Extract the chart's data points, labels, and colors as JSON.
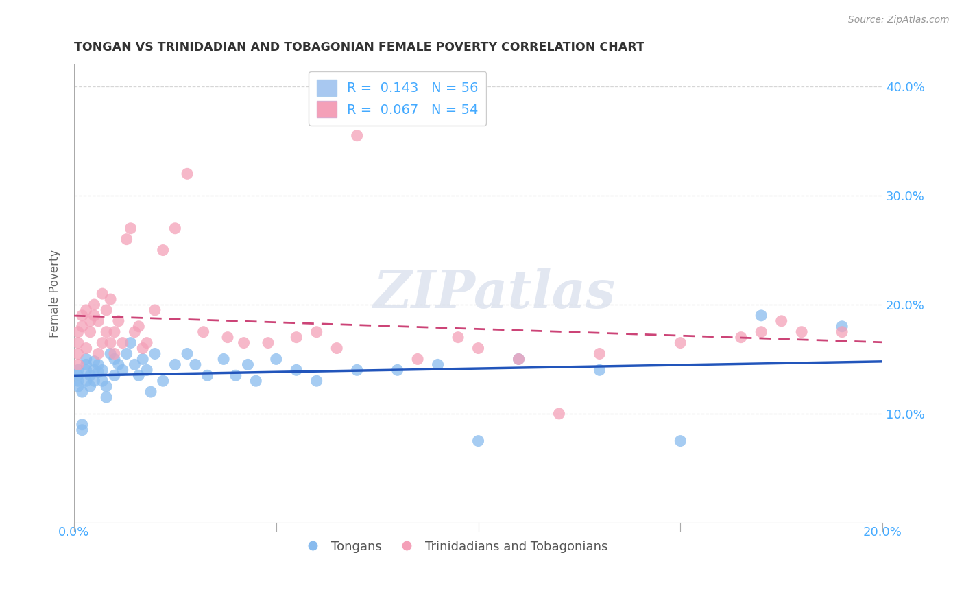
{
  "title": "TONGAN VS TRINIDADIAN AND TOBAGONIAN FEMALE POVERTY CORRELATION CHART",
  "source": "Source: ZipAtlas.com",
  "ylabel_label": "Female Poverty",
  "watermark": "ZIPatlas",
  "xlim": [
    0.0,
    0.2
  ],
  "ylim": [
    0.0,
    0.42
  ],
  "xtick_positions": [
    0.0,
    0.05,
    0.1,
    0.15,
    0.2
  ],
  "xtick_labels": [
    "0.0%",
    "",
    "",
    "",
    "20.0%"
  ],
  "ytick_positions": [
    0.1,
    0.2,
    0.3,
    0.4
  ],
  "ytick_labels": [
    "10.0%",
    "20.0%",
    "30.0%",
    "40.0%"
  ],
  "legend1_label": "R =  0.143   N = 56",
  "legend2_label": "R =  0.067   N = 54",
  "legend1_color": "#a8c8f0",
  "legend2_color": "#f4a0b8",
  "trendline1_color": "#2255bb",
  "trendline2_color": "#cc4477",
  "scatter1_color": "#88bbee",
  "scatter2_color": "#f4a0b8",
  "background_color": "#ffffff",
  "grid_color": "#cccccc",
  "title_color": "#333333",
  "tick_label_color": "#44aaff",
  "bottom_legend_color": "#555555",
  "tongans_x": [
    0.001,
    0.001,
    0.001,
    0.001,
    0.002,
    0.002,
    0.002,
    0.003,
    0.003,
    0.003,
    0.003,
    0.004,
    0.004,
    0.005,
    0.005,
    0.005,
    0.006,
    0.006,
    0.007,
    0.007,
    0.008,
    0.008,
    0.009,
    0.01,
    0.01,
    0.011,
    0.012,
    0.013,
    0.014,
    0.015,
    0.016,
    0.017,
    0.018,
    0.019,
    0.02,
    0.022,
    0.025,
    0.028,
    0.03,
    0.033,
    0.037,
    0.04,
    0.043,
    0.045,
    0.05,
    0.055,
    0.06,
    0.07,
    0.08,
    0.09,
    0.1,
    0.11,
    0.13,
    0.15,
    0.17,
    0.19
  ],
  "tongans_y": [
    0.13,
    0.125,
    0.135,
    0.14,
    0.12,
    0.09,
    0.085,
    0.145,
    0.15,
    0.13,
    0.14,
    0.135,
    0.125,
    0.148,
    0.14,
    0.13,
    0.145,
    0.138,
    0.13,
    0.14,
    0.125,
    0.115,
    0.155,
    0.15,
    0.135,
    0.145,
    0.14,
    0.155,
    0.165,
    0.145,
    0.135,
    0.15,
    0.14,
    0.12,
    0.155,
    0.13,
    0.145,
    0.155,
    0.145,
    0.135,
    0.15,
    0.135,
    0.145,
    0.13,
    0.15,
    0.14,
    0.13,
    0.14,
    0.14,
    0.145,
    0.075,
    0.15,
    0.14,
    0.075,
    0.19,
    0.18
  ],
  "trinidadian_x": [
    0.001,
    0.001,
    0.001,
    0.001,
    0.002,
    0.002,
    0.003,
    0.003,
    0.004,
    0.004,
    0.005,
    0.005,
    0.006,
    0.006,
    0.007,
    0.007,
    0.008,
    0.008,
    0.009,
    0.009,
    0.01,
    0.01,
    0.011,
    0.012,
    0.013,
    0.014,
    0.015,
    0.016,
    0.017,
    0.018,
    0.02,
    0.022,
    0.025,
    0.028,
    0.032,
    0.038,
    0.042,
    0.048,
    0.055,
    0.06,
    0.065,
    0.07,
    0.085,
    0.095,
    0.1,
    0.11,
    0.12,
    0.13,
    0.15,
    0.165,
    0.17,
    0.175,
    0.18,
    0.19
  ],
  "trinidadian_y": [
    0.175,
    0.165,
    0.155,
    0.145,
    0.19,
    0.18,
    0.195,
    0.16,
    0.185,
    0.175,
    0.2,
    0.19,
    0.155,
    0.185,
    0.21,
    0.165,
    0.195,
    0.175,
    0.205,
    0.165,
    0.155,
    0.175,
    0.185,
    0.165,
    0.26,
    0.27,
    0.175,
    0.18,
    0.16,
    0.165,
    0.195,
    0.25,
    0.27,
    0.32,
    0.175,
    0.17,
    0.165,
    0.165,
    0.17,
    0.175,
    0.16,
    0.355,
    0.15,
    0.17,
    0.16,
    0.15,
    0.1,
    0.155,
    0.165,
    0.17,
    0.175,
    0.185,
    0.175,
    0.175
  ]
}
